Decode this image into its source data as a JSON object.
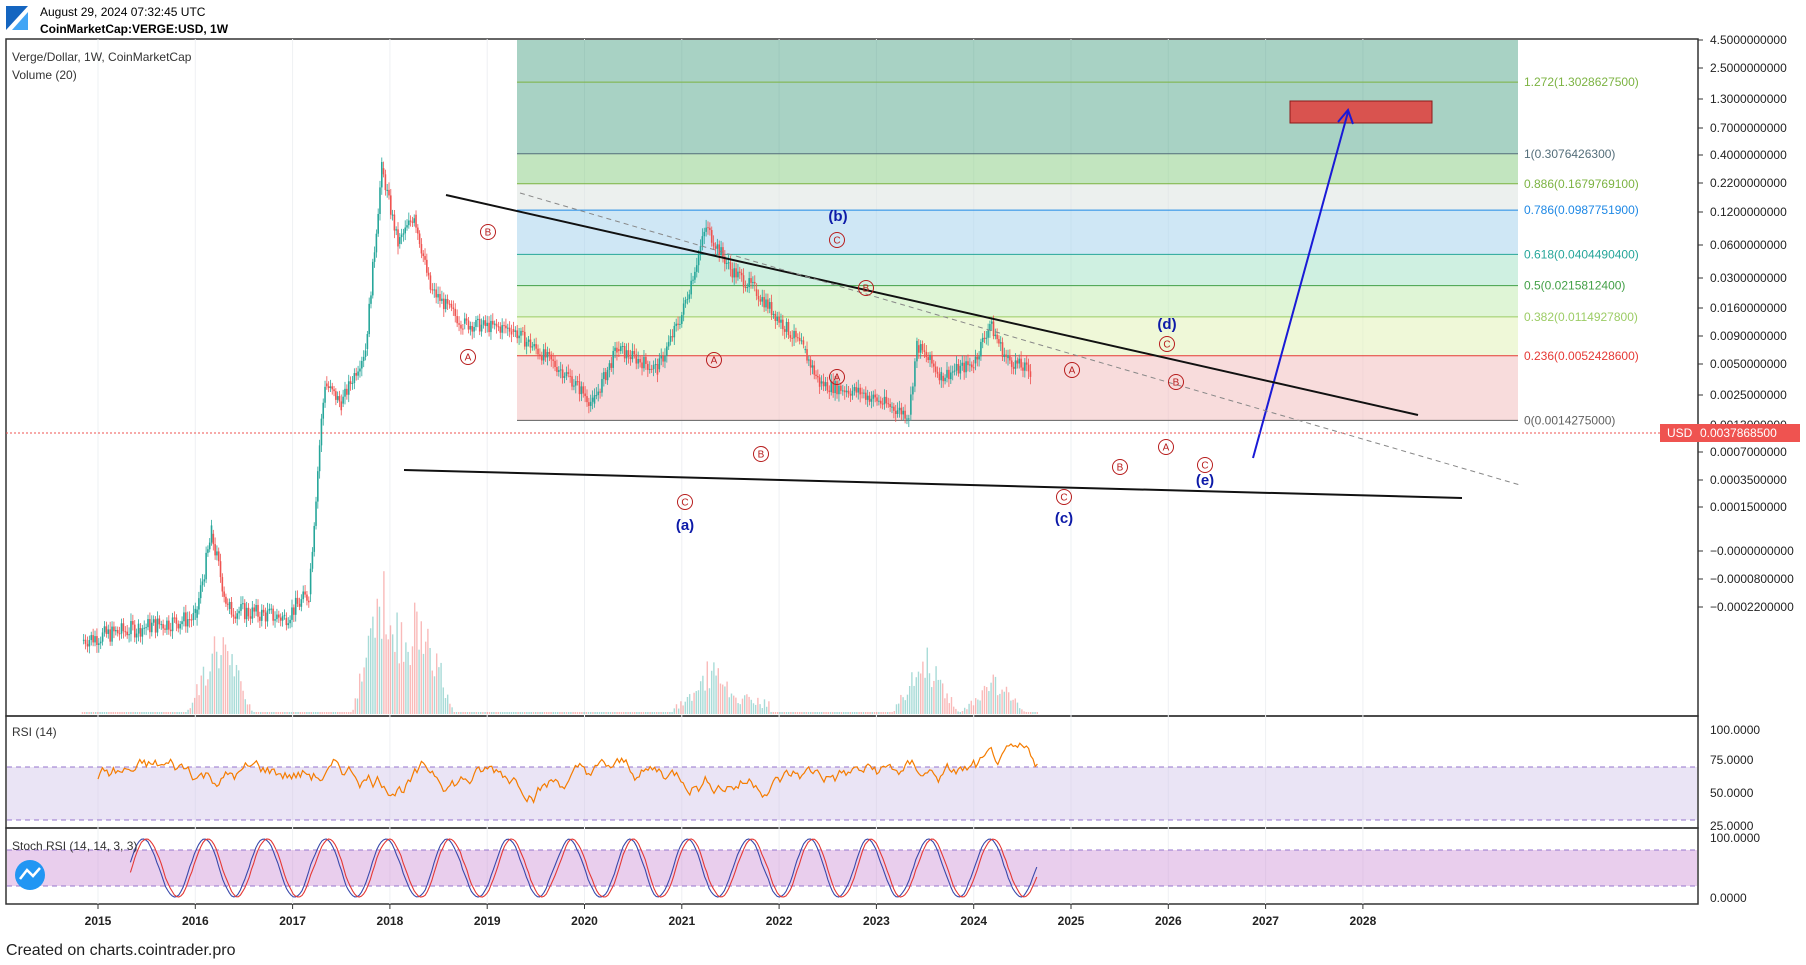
{
  "header": {
    "timestamp": "August 29, 2024 07:32:45 UTC",
    "symbol": "CoinMarketCap:VERGE:USD, 1W"
  },
  "main_pane": {
    "title": "Verge/Dollar, 1W, CoinMarketCap",
    "volume_label": "Volume (20)"
  },
  "rsi_pane": {
    "title": "RSI (14)",
    "ticks": [
      "100.0000",
      "75.0000",
      "50.0000",
      "25.0000"
    ]
  },
  "stoch_pane": {
    "title": "Stoch RSI (14, 14, 3, 3)",
    "ticks": [
      "100.0000",
      "0.0000"
    ]
  },
  "footer": {
    "text": "Created on charts.cointrader.pro"
  },
  "colors": {
    "bull": "#26a69a",
    "bear": "#ef5350",
    "rsi": "#f57c00",
    "stoch_k": "#3949ab",
    "stoch_d": "#e53935",
    "wave": "#0d1aa8",
    "price_tag": "#ef5350"
  },
  "chart_data": {
    "type": "line",
    "title": "Verge/Dollar, 1W, CoinMarketCap",
    "scale": "log",
    "x_ticks": [
      "2015",
      "2016",
      "2017",
      "2018",
      "2019",
      "2020",
      "2021",
      "2022",
      "2023",
      "2024",
      "2025",
      "2026",
      "2027",
      "2028"
    ],
    "y_ticks": [
      "4.5000000000",
      "2.5000000000",
      "1.3000000000",
      "0.7000000000",
      "0.4000000000",
      "0.2200000000",
      "0.1200000000",
      "0.0600000000",
      "0.0300000000",
      "0.0160000000",
      "0.0090000000",
      "0.0050000000",
      "0.0025000000",
      "0.0013000000",
      "0.0007000000",
      "0.0003500000",
      "0.0001500000",
      "−0.0000000000",
      "−0.0000800000",
      "−0.0002200000"
    ],
    "current_price": {
      "label": "USD",
      "value": "0.0037868500"
    },
    "price_series": [
      {
        "x": "2014-11",
        "y": 5e-05
      },
      {
        "x": "2015-06",
        "y": 6e-05
      },
      {
        "x": "2016-01",
        "y": 7e-05
      },
      {
        "x": "2016-03",
        "y": 0.00025
      },
      {
        "x": "2016-05",
        "y": 8e-05
      },
      {
        "x": "2016-12",
        "y": 7e-05
      },
      {
        "x": "2017-03",
        "y": 0.0001
      },
      {
        "x": "2017-05",
        "y": 0.003
      },
      {
        "x": "2017-07",
        "y": 0.002
      },
      {
        "x": "2017-10",
        "y": 0.006
      },
      {
        "x": "2017-12",
        "y": 0.23
      },
      {
        "x": "2018-02",
        "y": 0.05
      },
      {
        "x": "2018-04",
        "y": 0.09
      },
      {
        "x": "2018-06",
        "y": 0.02
      },
      {
        "x": "2018-10",
        "y": 0.01
      },
      {
        "x": "2019-04",
        "y": 0.009
      },
      {
        "x": "2019-11",
        "y": 0.0035
      },
      {
        "x": "2020-02",
        "y": 0.002
      },
      {
        "x": "2020-05",
        "y": 0.006
      },
      {
        "x": "2020-10",
        "y": 0.004
      },
      {
        "x": "2021-01",
        "y": 0.012
      },
      {
        "x": "2021-04",
        "y": 0.07
      },
      {
        "x": "2021-07",
        "y": 0.03
      },
      {
        "x": "2021-10",
        "y": 0.02
      },
      {
        "x": "2022-04",
        "y": 0.006
      },
      {
        "x": "2022-06",
        "y": 0.003
      },
      {
        "x": "2022-11",
        "y": 0.0025
      },
      {
        "x": "2023-05",
        "y": 0.0016
      },
      {
        "x": "2023-06",
        "y": 0.0065
      },
      {
        "x": "2023-09",
        "y": 0.0035
      },
      {
        "x": "2024-01",
        "y": 0.0045
      },
      {
        "x": "2024-03",
        "y": 0.01
      },
      {
        "x": "2024-05",
        "y": 0.005
      },
      {
        "x": "2024-08",
        "y": 0.0038
      }
    ],
    "fib_levels": [
      {
        "label": "1.272(1.3028627500)",
        "value": 1.30286275
      },
      {
        "label": "1(0.3076426300)",
        "value": 0.30764263
      },
      {
        "label": "0.886(0.1679769100)",
        "value": 0.16797691
      },
      {
        "label": "0.786(0.0987751900)",
        "value": 0.09877519
      },
      {
        "label": "0.618(0.0404490400)",
        "value": 0.04044904
      },
      {
        "label": "0.5(0.0215812400)",
        "value": 0.02158124
      },
      {
        "label": "0.382(0.0114927800)",
        "value": 0.01149278
      },
      {
        "label": "0.236(0.0052428600)",
        "value": 0.00524286
      },
      {
        "label": "0(0.0014275000)",
        "value": 0.0014275
      }
    ],
    "wave_labels": [
      "(a)",
      "(b)",
      "(c)",
      "(d)",
      "(e)"
    ],
    "sub_wave_labels": [
      "A",
      "B",
      "C"
    ],
    "legend": "none",
    "grid": true
  }
}
